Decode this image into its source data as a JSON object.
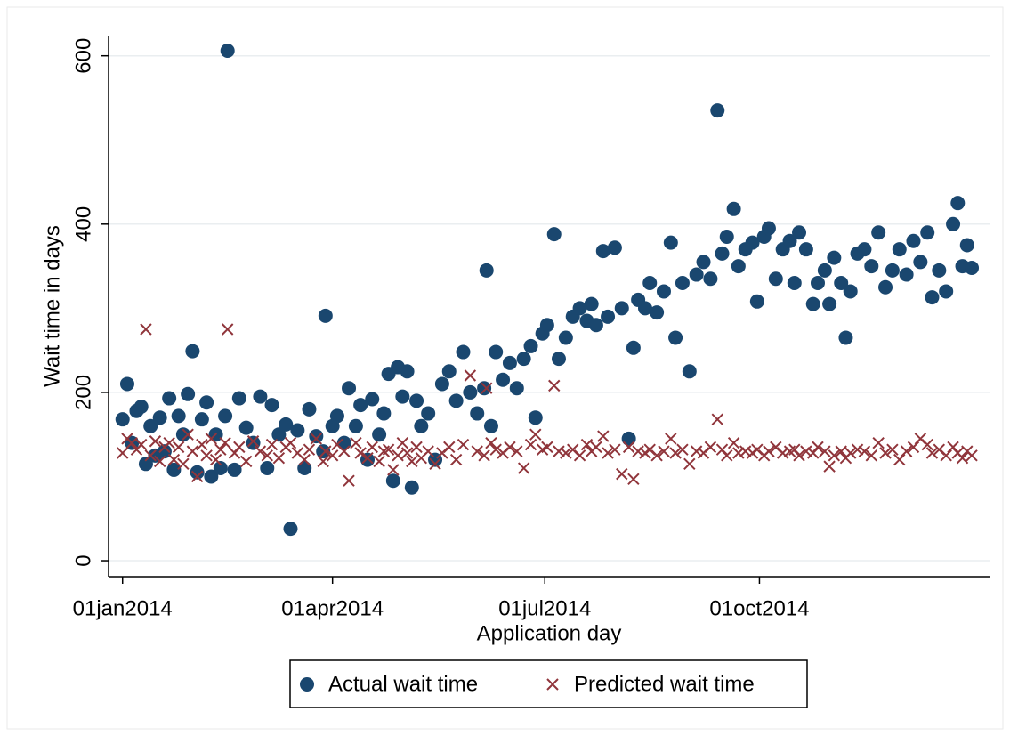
{
  "chart_data": {
    "type": "scatter",
    "x_label": "Application day",
    "y_label": "Wait time in days",
    "xlim": [
      19718,
      20096
    ],
    "ylim": [
      -19,
      624
    ],
    "xticks": [
      {
        "value": 19724,
        "label": "01jan2014"
      },
      {
        "value": 19814,
        "label": "01apr2014"
      },
      {
        "value": 19905,
        "label": "01jul2014"
      },
      {
        "value": 19997,
        "label": "01oct2014"
      }
    ],
    "yticks": [
      0,
      200,
      400,
      600
    ],
    "grid": true,
    "legend": "bottom",
    "x": [
      19724,
      19726,
      19728,
      19730,
      19732,
      19734,
      19736,
      19738,
      19740,
      19742,
      19744,
      19746,
      19748,
      19750,
      19752,
      19754,
      19756,
      19758,
      19760,
      19762,
      19764,
      19766,
      19768,
      19769,
      19772,
      19774,
      19777,
      19780,
      19783,
      19786,
      19788,
      19791,
      19794,
      19796,
      19799,
      19802,
      19804,
      19807,
      19810,
      19811,
      19814,
      19816,
      19819,
      19821,
      19824,
      19826,
      19829,
      19831,
      19834,
      19836,
      19838,
      19840,
      19842,
      19844,
      19846,
      19848,
      19850,
      19852,
      19855,
      19858,
      19861,
      19864,
      19867,
      19870,
      19873,
      19876,
      19879,
      19880,
      19882,
      19884,
      19887,
      19890,
      19893,
      19896,
      19899,
      19901,
      19904,
      19906,
      19909,
      19911,
      19914,
      19917,
      19920,
      19923,
      19925,
      19927,
      19930,
      19932,
      19935,
      19938,
      19941,
      19943,
      19945,
      19948,
      19950,
      19953,
      19956,
      19959,
      19961,
      19964,
      19967,
      19970,
      19973,
      19976,
      19979,
      19981,
      19983,
      19986,
      19988,
      19991,
      19994,
      19996,
      19999,
      20001,
      20004,
      20007,
      20010,
      20012,
      20014,
      20017,
      20020,
      20022,
      20025,
      20027,
      20029,
      20032,
      20034,
      20036,
      20039,
      20042,
      20045,
      20048,
      20051,
      20054,
      20057,
      20060,
      20063,
      20066,
      20069,
      20071,
      20074,
      20077,
      20080,
      20082,
      20084,
      20086,
      20088
    ],
    "series": [
      {
        "name": "Actual wait time",
        "color": "#1a476f",
        "marker": "circle",
        "values": [
          168,
          210,
          140,
          178,
          183,
          115,
          160,
          125,
          170,
          130,
          193,
          108,
          172,
          150,
          198,
          249,
          105,
          168,
          188,
          100,
          150,
          110,
          172,
          606,
          108,
          193,
          158,
          140,
          195,
          110,
          185,
          150,
          162,
          38,
          155,
          110,
          180,
          148,
          130,
          291,
          160,
          172,
          140,
          205,
          160,
          185,
          120,
          192,
          150,
          175,
          222,
          95,
          230,
          195,
          225,
          87,
          190,
          160,
          175,
          120,
          210,
          225,
          190,
          248,
          200,
          175,
          205,
          345,
          160,
          248,
          215,
          235,
          205,
          240,
          255,
          170,
          270,
          280,
          388,
          240,
          265,
          290,
          300,
          285,
          305,
          280,
          368,
          290,
          372,
          300,
          145,
          253,
          310,
          300,
          330,
          295,
          320,
          378,
          265,
          330,
          225,
          340,
          355,
          335,
          535,
          365,
          385,
          418,
          350,
          370,
          378,
          308,
          385,
          395,
          335,
          370,
          380,
          330,
          390,
          370,
          305,
          330,
          345,
          305,
          360,
          330,
          265,
          320,
          365,
          370,
          350,
          390,
          325,
          345,
          370,
          340,
          380,
          355,
          390,
          313,
          345,
          320,
          400,
          425,
          350,
          375,
          348
        ]
      },
      {
        "name": "Predicted wait time",
        "color": "#90353b",
        "marker": "x",
        "values": [
          128,
          145,
          140,
          132,
          138,
          275,
          125,
          142,
          118,
          135,
          140,
          120,
          135,
          115,
          150,
          130,
          100,
          138,
          125,
          145,
          120,
          132,
          140,
          275,
          128,
          135,
          118,
          142,
          130,
          125,
          138,
          122,
          135,
          140,
          128,
          120,
          132,
          145,
          118,
          130,
          125,
          138,
          130,
          95,
          140,
          128,
          122,
          135,
          118,
          130,
          132,
          108,
          125,
          140,
          128,
          118,
          135,
          122,
          130,
          115,
          128,
          135,
          120,
          138,
          220,
          130,
          125,
          205,
          140,
          132,
          128,
          135,
          130,
          110,
          138,
          150,
          132,
          135,
          208,
          130,
          128,
          132,
          125,
          138,
          130,
          135,
          148,
          128,
          132,
          103,
          135,
          97,
          130,
          128,
          132,
          125,
          130,
          145,
          128,
          132,
          115,
          130,
          128,
          135,
          168,
          132,
          125,
          140,
          128,
          130,
          128,
          132,
          125,
          130,
          135,
          128,
          130,
          132,
          125,
          130,
          128,
          135,
          130,
          112,
          125,
          130,
          122,
          128,
          132,
          130,
          125,
          140,
          128,
          132,
          120,
          130,
          135,
          145,
          138,
          128,
          132,
          125,
          135,
          128,
          122,
          130,
          125
        ]
      }
    ]
  }
}
